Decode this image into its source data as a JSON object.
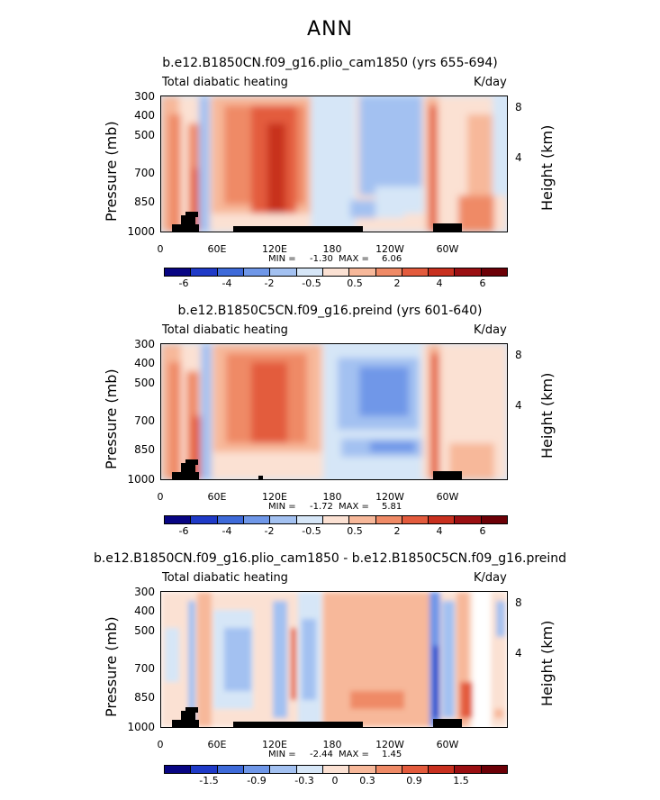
{
  "figure_title": "ANN",
  "colors": {
    "scale": [
      "#080583",
      "#1f3ac7",
      "#3e6ad9",
      "#6f97e8",
      "#a3c1f1",
      "#d6e6f7",
      "#fbe1d3",
      "#f7b89a",
      "#ef8a66",
      "#e35b3d",
      "#c8301f",
      "#9a0f12",
      "#6c0007"
    ],
    "terrain": "#000000"
  },
  "chart_data": [
    {
      "type": "heatmap",
      "title": "b.e12.B1850CN.f09_g16.plio_cam1850 (yrs 655-694)",
      "left_label": "Total diabatic heating",
      "right_label": "K/day",
      "ylabel": "Pressure (mb)",
      "y2label": "Height (km)",
      "y_ticks": [
        "300",
        "400",
        "500",
        "700",
        "850",
        "1000"
      ],
      "y2_ticks": [
        "8",
        "4"
      ],
      "x_ticks": [
        "0",
        "60E",
        "120E",
        "180",
        "120W",
        "60W"
      ],
      "min_label": "MIN =",
      "min_value": "-1.30",
      "max_label": "MAX =",
      "max_value": "6.06",
      "colorbar_labels": [
        "-6",
        "-4",
        "-2",
        "-0.5",
        "0.5",
        "2",
        "4",
        "6"
      ]
    },
    {
      "type": "heatmap",
      "title": "b.e12.B1850C5CN.f09_g16.preind (yrs 601-640)",
      "left_label": "Total diabatic heating",
      "right_label": "K/day",
      "ylabel": "Pressure (mb)",
      "y2label": "Height (km)",
      "y_ticks": [
        "300",
        "400",
        "500",
        "700",
        "850",
        "1000"
      ],
      "y2_ticks": [
        "8",
        "4"
      ],
      "x_ticks": [
        "0",
        "60E",
        "120E",
        "180",
        "120W",
        "60W"
      ],
      "min_label": "MIN =",
      "min_value": "-1.72",
      "max_label": "MAX =",
      "max_value": "5.81",
      "colorbar_labels": [
        "-6",
        "-4",
        "-2",
        "-0.5",
        "0.5",
        "2",
        "4",
        "6"
      ]
    },
    {
      "type": "heatmap",
      "title": "b.e12.B1850CN.f09_g16.plio_cam1850 - b.e12.B1850C5CN.f09_g16.preind",
      "left_label": "Total diabatic heating",
      "right_label": "K/day",
      "ylabel": "Pressure (mb)",
      "y2label": "Height (km)",
      "y_ticks": [
        "300",
        "400",
        "500",
        "700",
        "850",
        "1000"
      ],
      "y2_ticks": [
        "8",
        "4"
      ],
      "x_ticks": [
        "0",
        "60E",
        "120E",
        "180",
        "120W",
        "60W"
      ],
      "min_label": "MIN =",
      "min_value": "-2.44",
      "max_label": "MAX =",
      "max_value": "1.45",
      "colorbar_labels": [
        "-1.5",
        "-0.9",
        "-0.3",
        "0",
        "0.3",
        "0.9",
        "1.5"
      ]
    }
  ]
}
